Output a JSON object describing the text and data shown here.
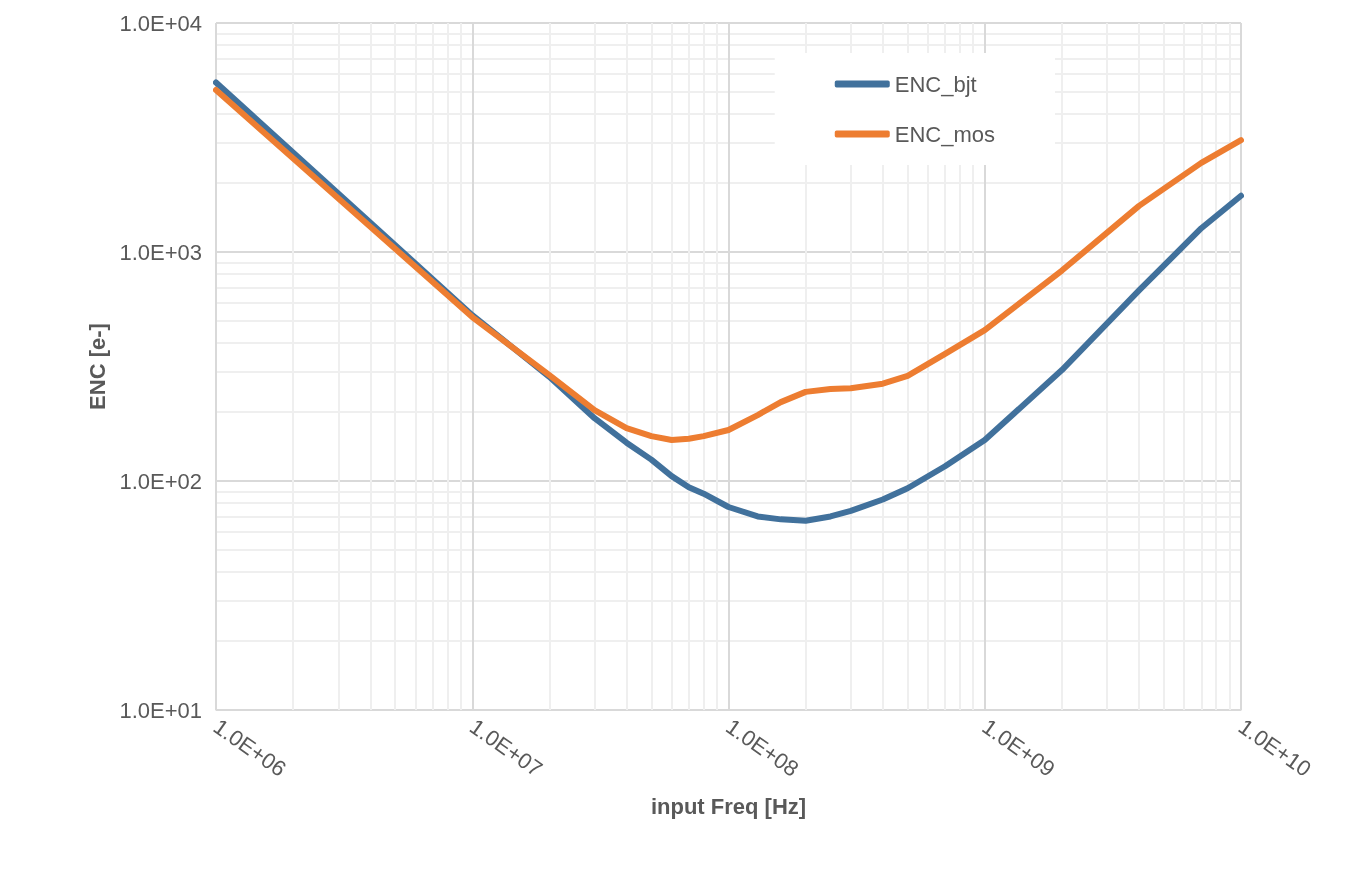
{
  "chart_data": {
    "type": "line",
    "xlabel": "input Freq [Hz]",
    "ylabel": "ENC [e-]",
    "log": "xy",
    "grid": true,
    "legend": "top right",
    "marker": "none",
    "line_style": "solid",
    "xlim": [
      1000000,
      10000000000
    ],
    "ylim": [
      10,
      10000
    ],
    "xticks": [
      {
        "value": 1000000,
        "label": "1.0E+06"
      },
      {
        "value": 10000000,
        "label": "1.0E+07"
      },
      {
        "value": 100000000,
        "label": "1.0E+08"
      },
      {
        "value": 1000000000,
        "label": "1.0E+09"
      },
      {
        "value": 10000000000,
        "label": "1.0E+10"
      }
    ],
    "yticks": [
      {
        "value": 10,
        "label": "1.0E+01"
      },
      {
        "value": 100,
        "label": "1.0E+02"
      },
      {
        "value": 1000,
        "label": "1.0E+03"
      },
      {
        "value": 10000,
        "label": "1.0E+04"
      }
    ],
    "x": [
      1000000,
      10000000,
      20000000,
      30000000,
      40000000,
      50000000,
      60000000,
      70000000,
      80000000,
      100000000,
      130000000,
      160000000,
      200000000,
      250000000,
      300000000,
      400000000,
      500000000,
      700000000,
      1000000000,
      2000000000,
      4000000000,
      7000000000,
      10000000000
    ],
    "series": [
      {
        "name": "ENC_bjt",
        "color": "#41719c",
        "values": [
          5500,
          530,
          285,
          188,
          147,
          124,
          105,
          94,
          88,
          77,
          70,
          68,
          67,
          70,
          74,
          83,
          93,
          116,
          151,
          305,
          680,
          1270,
          1760
        ]
      },
      {
        "name": "ENC_mos",
        "color": "#ed7d31",
        "values": [
          5100,
          520,
          290,
          204,
          170,
          157,
          151,
          153,
          157,
          167,
          194,
          221,
          245,
          252,
          254,
          266,
          288,
          359,
          456,
          830,
          1590,
          2450,
          3080
        ]
      }
    ]
  }
}
